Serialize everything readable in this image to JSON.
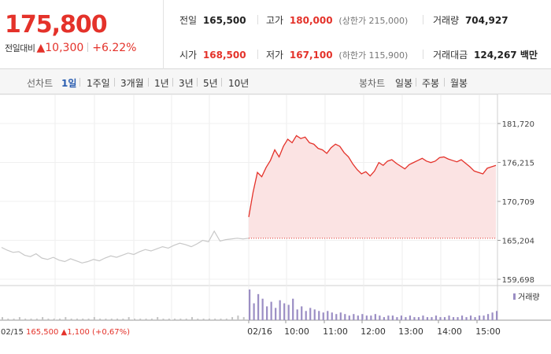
{
  "header": {
    "price": "175,800",
    "change_label": "전일대비",
    "change_arrow": "▲",
    "change_value": "10,300",
    "change_pct": "+6.22%"
  },
  "stats": {
    "prev": {
      "label": "전일",
      "value": "165,500"
    },
    "high": {
      "label": "고가",
      "value": "180,000",
      "note": "(상한가 215,000)"
    },
    "volume": {
      "label": "거래량",
      "value": "704,927"
    },
    "open": {
      "label": "시가",
      "value": "168,500"
    },
    "low": {
      "label": "저가",
      "value": "167,100",
      "note": "(하한가 115,900)"
    },
    "amount": {
      "label": "거래대금",
      "value": "124,267 백만"
    }
  },
  "line_tabs": {
    "label": "선차트",
    "items": [
      "1일",
      "1주일",
      "3개월",
      "1년",
      "3년",
      "5년",
      "10년"
    ],
    "active": "1일"
  },
  "candle_tabs": {
    "label": "봉차트",
    "items": [
      "일봉",
      "주봉",
      "월봉"
    ]
  },
  "colors": {
    "up": "#e4322a",
    "fill": "#fbe3e3",
    "prev_line": "#c8c8c8",
    "volume_today": "#9b8ec4",
    "volume_prev": "#c2c2c2"
  },
  "chart_data": {
    "type": "line",
    "ylim": [
      159698,
      181720
    ],
    "y_ticks": [
      {
        "value": 181720,
        "label": "181,720"
      },
      {
        "value": 176215,
        "label": "176,215"
      },
      {
        "value": 170709,
        "label": "170,709"
      },
      {
        "value": 165204,
        "label": "165,204"
      },
      {
        "value": 159698,
        "label": "159,698"
      }
    ],
    "x_ticks": [
      "02/16",
      "10:00",
      "11:00",
      "12:00",
      "13:00",
      "14:00",
      "15:00"
    ],
    "baseline": 165500,
    "series": [
      {
        "values_prev_day": [
          164200,
          163800,
          163500,
          163600,
          163100,
          162900,
          163300,
          162700,
          162500,
          162800,
          162400,
          162200,
          162600,
          162300,
          162000,
          162200,
          162500,
          162300,
          162700,
          163000,
          162800,
          163100,
          163400,
          163200,
          163600,
          163900,
          163700,
          164000,
          164300,
          164100,
          164500,
          164800,
          164600,
          164300,
          164700,
          165200,
          165000,
          166500,
          165100,
          165300,
          165400,
          165500,
          165400,
          165500
        ],
        "values_today": [
          168500,
          172000,
          174800,
          174200,
          175500,
          176500,
          178000,
          177000,
          178500,
          179500,
          179000,
          180000,
          179600,
          179800,
          179000,
          178800,
          178200,
          178000,
          177500,
          178300,
          178800,
          178500,
          177600,
          177000,
          176000,
          175200,
          174600,
          174900,
          174300,
          175000,
          176200,
          175800,
          176400,
          176600,
          176100,
          175700,
          175300,
          175900,
          176200,
          176500,
          176800,
          176400,
          176200,
          176400,
          176900,
          177000,
          176700,
          176500,
          176300,
          176600,
          176100,
          175600,
          175000,
          174800,
          174600,
          175400,
          175600,
          175800
        ],
        "high": 180000,
        "low": 167100
      }
    ],
    "volume": {
      "legend": "거래량",
      "prev_day": [
        2,
        1,
        1,
        2,
        1,
        1,
        1,
        2,
        1,
        1,
        1,
        2,
        1,
        1,
        1,
        1,
        2,
        1,
        1,
        1,
        1,
        1,
        2,
        1,
        1,
        1,
        1,
        2,
        1,
        1,
        1,
        1,
        1,
        2,
        1,
        1,
        1,
        1,
        1,
        1,
        2,
        3,
        2,
        4
      ],
      "today": [
        20,
        11,
        17,
        14,
        9,
        12,
        8,
        13,
        11,
        10,
        14,
        7,
        9,
        6,
        8,
        7,
        6,
        5,
        6,
        5,
        4,
        5,
        4,
        3,
        4,
        3,
        4,
        3,
        3,
        4,
        3,
        2,
        3,
        3,
        2,
        3,
        2,
        3,
        2,
        2,
        3,
        2,
        2,
        3,
        2,
        2,
        3,
        2,
        2,
        3,
        2,
        3,
        2,
        3,
        3,
        4,
        5,
        6
      ]
    },
    "footer": {
      "date": "02/15",
      "price": "165,500",
      "arrow": "▲",
      "change": "1,100",
      "pct": "(+0,67%)"
    }
  }
}
